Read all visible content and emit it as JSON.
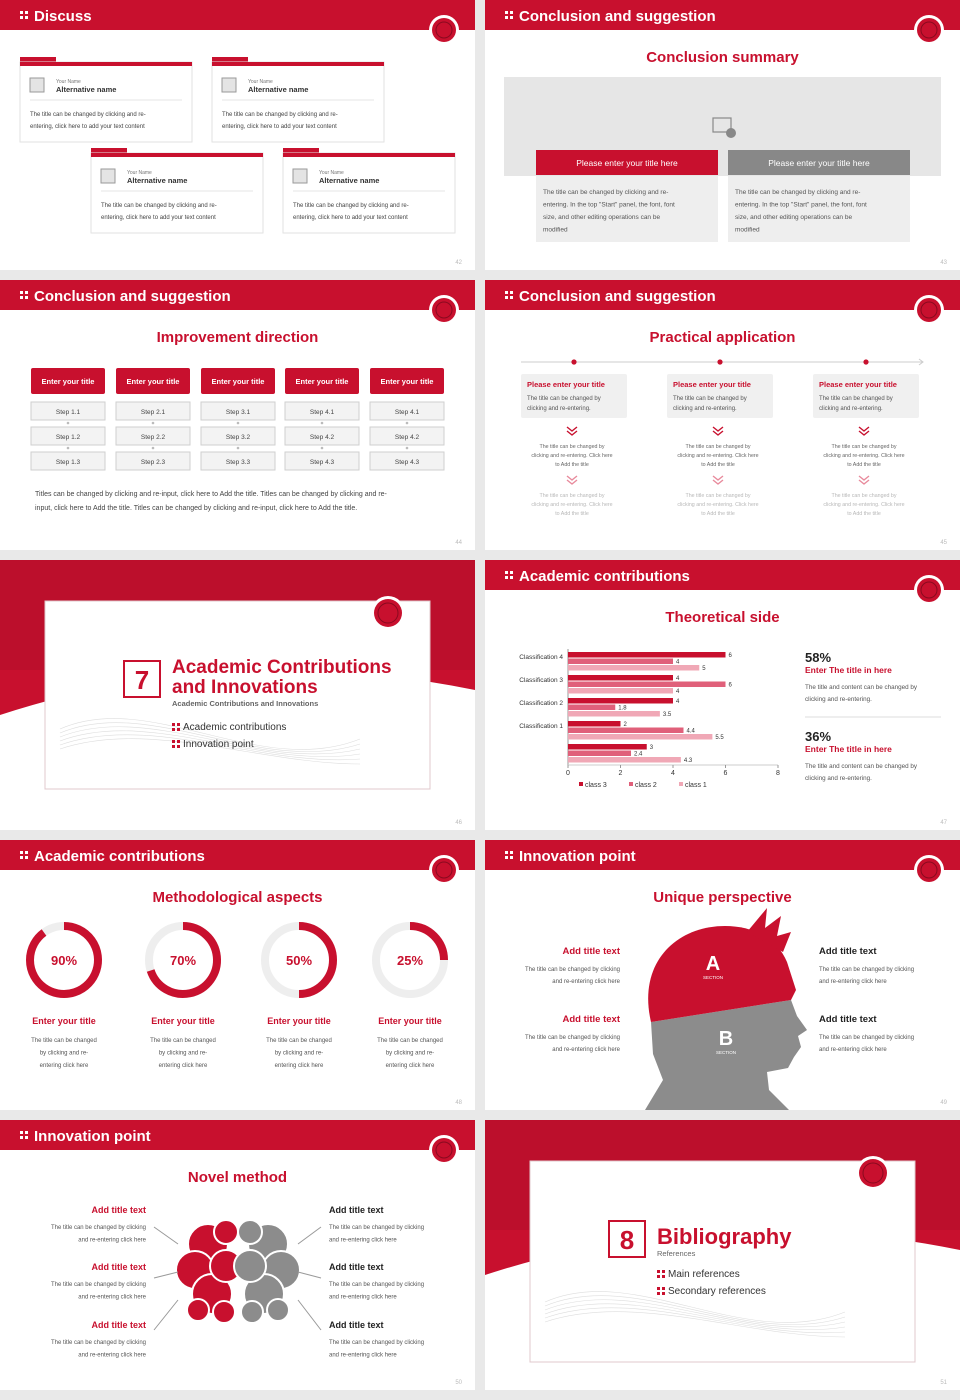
{
  "slides": [
    {
      "header": "Discuss",
      "page": 42,
      "cards": [
        {
          "label": "Your Name",
          "name": "Alternative name",
          "text": [
            "The title can be changed by clicking and re-",
            "entering, click here to add your text content"
          ]
        },
        {
          "label": "Your Name",
          "name": "Alternative name",
          "text": [
            "The title can be changed by clicking and re-",
            "entering, click here to add your text content"
          ]
        },
        {
          "label": "Your Name",
          "name": "Alternative name",
          "text": [
            "The title can be changed by clicking and re-",
            "entering, click here to add your text content"
          ]
        },
        {
          "label": "Your Name",
          "name": "Alternative name",
          "text": [
            "The title can be changed by clicking and re-",
            "entering, click here to add your text content"
          ]
        }
      ]
    },
    {
      "header": "Conclusion and suggestion",
      "page": 43,
      "subtitle": "Conclusion summary",
      "boxes": [
        {
          "title": "Please enter your title here",
          "text": [
            "The title can be changed by clicking and re-",
            "entering. In the top \"Start\" panel, the font, font",
            "size, and other editing operations can be",
            "modified"
          ]
        },
        {
          "title": "Please enter your title here",
          "text": [
            "The title can be changed by clicking and re-",
            "entering. In the top \"Start\" panel, the font, font",
            "size, and other editing operations can be",
            "modified"
          ]
        }
      ]
    },
    {
      "header": "Conclusion and suggestion",
      "page": 44,
      "subtitle": "Improvement direction",
      "columns": [
        {
          "title": "Enter your title",
          "steps": [
            "Step 1.1",
            "Step 1.2",
            "Step 1.3"
          ]
        },
        {
          "title": "Enter your title",
          "steps": [
            "Step 2.1",
            "Step 2.2",
            "Step 2.3"
          ]
        },
        {
          "title": "Enter your title",
          "steps": [
            "Step 3.1",
            "Step 3.2",
            "Step 3.3"
          ]
        },
        {
          "title": "Enter your title",
          "steps": [
            "Step 4.1",
            "Step 4.2",
            "Step 4.3"
          ]
        },
        {
          "title": "Enter your title",
          "steps": [
            "Step 4.1",
            "Step 4.2",
            "Step 4.3"
          ]
        }
      ],
      "paragraph": [
        "Titles can be changed by clicking and re-input, click here to Add the title. Titles can be changed by clicking and re-",
        "input, click here to Add the title. Titles can be changed by clicking and re-input, click here to Add the title."
      ]
    },
    {
      "header": "Conclusion and suggestion",
      "page": 45,
      "subtitle": "Practical application",
      "columns": [
        {
          "title": "Please enter your title",
          "text": [
            "The title can be changed by",
            "clicking and re-entering."
          ],
          "details": [
            [
              "The title can be changed by",
              "clicking and re-entering. Click here",
              "to Add the title"
            ],
            [
              "The title can be changed by",
              "clicking and re-entering. Click here",
              "to Add the title"
            ]
          ]
        },
        {
          "title": "Please enter your title",
          "text": [
            "The title can be changed by",
            "clicking and re-entering."
          ],
          "details": [
            [
              "The title can be changed by",
              "clicking and re-entering. Click here",
              "to Add the title"
            ],
            [
              "The title can be changed by",
              "clicking and re-entering. Click here",
              "to Add the title"
            ]
          ]
        },
        {
          "title": "Please enter your title",
          "text": [
            "The title can be changed by",
            "clicking and re-entering."
          ],
          "details": [
            [
              "The title can be changed by",
              "clicking and re-entering. Click here",
              "to Add the title"
            ],
            [
              "The title can be changed by",
              "clicking and re-entering. Click here",
              "to Add the title"
            ]
          ]
        }
      ]
    },
    {
      "page": 46,
      "number": 7,
      "title": [
        "Academic Contributions",
        "and Innovations"
      ],
      "subtitle": "Academic Contributions and Innovations",
      "bullets": [
        "Academic contributions",
        "Innovation point"
      ]
    },
    {
      "header": "Academic contributions",
      "page": 47,
      "subtitle": "Theoretical side",
      "stats": [
        {
          "value": "58%",
          "title": "Enter The title in here",
          "text": [
            "The title and content can be changed by",
            "clicking and re-entering."
          ]
        },
        {
          "value": "36%",
          "title": "Enter The title in here",
          "text": [
            "The title and content can be changed by",
            "clicking and re-entering."
          ]
        }
      ]
    },
    {
      "header": "Academic contributions",
      "page": 48,
      "subtitle": "Methodological aspects",
      "rings": {
        "values": [
          90,
          70,
          50,
          25
        ],
        "value_labels": [
          "90%",
          "70%",
          "50%",
          "25%"
        ]
      },
      "items": [
        {
          "title": "Enter your title",
          "text": [
            "The title can be changed",
            "by clicking and re-",
            "entering click here"
          ]
        },
        {
          "title": "Enter your title",
          "text": [
            "The title can be changed",
            "by clicking and re-",
            "entering click here"
          ]
        },
        {
          "title": "Enter your title",
          "text": [
            "The title can be changed",
            "by clicking and re-",
            "entering click here"
          ]
        },
        {
          "title": "Enter your title",
          "text": [
            "The title can be changed",
            "by clicking and re-",
            "entering click here"
          ]
        }
      ]
    },
    {
      "header": "Innovation point",
      "page": 49,
      "subtitle": "Unique perspective",
      "sections": [
        {
          "letter": "A",
          "label": "SECTION"
        },
        {
          "letter": "B",
          "label": "SECTION"
        }
      ],
      "items": [
        {
          "title": "Add title text",
          "text": [
            "The title can be changed by clicking",
            "and re-entering click here"
          ]
        },
        {
          "title": "Add title text",
          "text": [
            "The title can be changed by clicking",
            "and re-entering click here"
          ]
        },
        {
          "title": "Add title text",
          "text": [
            "The title can be changed by clicking",
            "and re-entering click here"
          ]
        },
        {
          "title": "Add title text",
          "text": [
            "The title can be changed by clicking",
            "and re-entering click here"
          ]
        }
      ]
    },
    {
      "header": "Innovation point",
      "page": 50,
      "subtitle": "Novel method",
      "items": [
        {
          "title": "Add title text",
          "text": [
            "The title can be changed by clicking",
            "and re-entering click here"
          ]
        },
        {
          "title": "Add title text",
          "text": [
            "The title can be changed by clicking",
            "and re-entering click here"
          ]
        },
        {
          "title": "Add title text",
          "text": [
            "The title can be changed by clicking",
            "and re-entering click here"
          ]
        },
        {
          "title": "Add title text",
          "text": [
            "The title can be changed by clicking",
            "and re-entering click here"
          ]
        },
        {
          "title": "Add title text",
          "text": [
            "The title can be changed by clicking",
            "and re-entering click here"
          ]
        },
        {
          "title": "Add title text",
          "text": [
            "The title can be changed by clicking",
            "and re-entering click here"
          ]
        }
      ]
    },
    {
      "page": 51,
      "number": 8,
      "title": [
        "Bibliography"
      ],
      "subtitle": "References",
      "bullets": [
        "Main references",
        "Secondary references"
      ]
    }
  ],
  "chart_data": {
    "type": "bar",
    "orientation": "horizontal",
    "categories": [
      "Classification 4",
      "Classification 3",
      "Classification 2",
      "Classification 1",
      null
    ],
    "series": [
      {
        "name": "class 3",
        "color": "#c8102e",
        "values": [
          6,
          4,
          4,
          2,
          3
        ]
      },
      {
        "name": "class 2",
        "color": "#e0607a",
        "values": [
          4,
          6,
          1.8,
          4.4,
          2.4
        ]
      },
      {
        "name": "class 1",
        "color": "#f0a8b6",
        "values": [
          5,
          4,
          3.5,
          5.5,
          4.3
        ]
      }
    ],
    "xlim": [
      0,
      8
    ],
    "xticks": [
      0,
      2,
      4,
      6,
      8
    ],
    "data_labels": true,
    "legend": "bottom"
  }
}
